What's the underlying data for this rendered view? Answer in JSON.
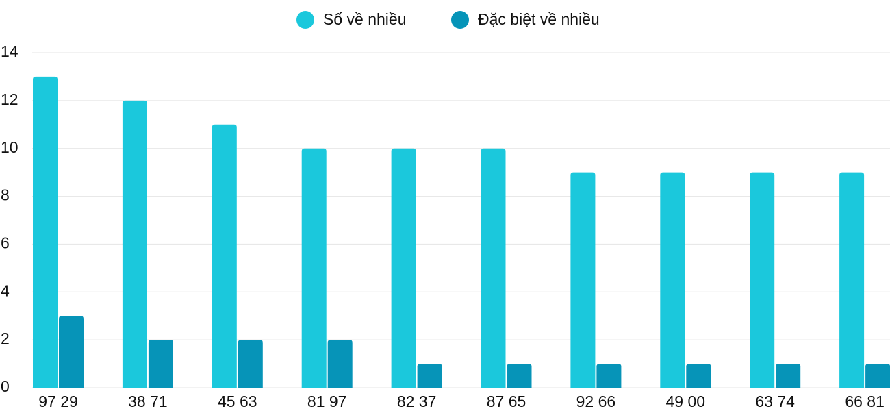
{
  "chart_data": {
    "type": "bar",
    "categories": [
      "97 29",
      "38 71",
      "45 63",
      "81 97",
      "82 37",
      "87 65",
      "92 66",
      "49 00",
      "63 74",
      "66 81"
    ],
    "series": [
      {
        "name": "Số về nhiều",
        "color": "#1bc8dc",
        "values": [
          13,
          12,
          11,
          10,
          10,
          10,
          9,
          9,
          9,
          9
        ]
      },
      {
        "name": "Đặc biệt về nhiều",
        "color": "#0694b8",
        "values": [
          3,
          2,
          2,
          2,
          1,
          1,
          1,
          1,
          1,
          1
        ]
      }
    ],
    "ylim": [
      0,
      14
    ],
    "yticks": [
      0,
      2,
      4,
      6,
      8,
      10,
      12,
      14
    ],
    "grid": true,
    "legend": "top"
  }
}
